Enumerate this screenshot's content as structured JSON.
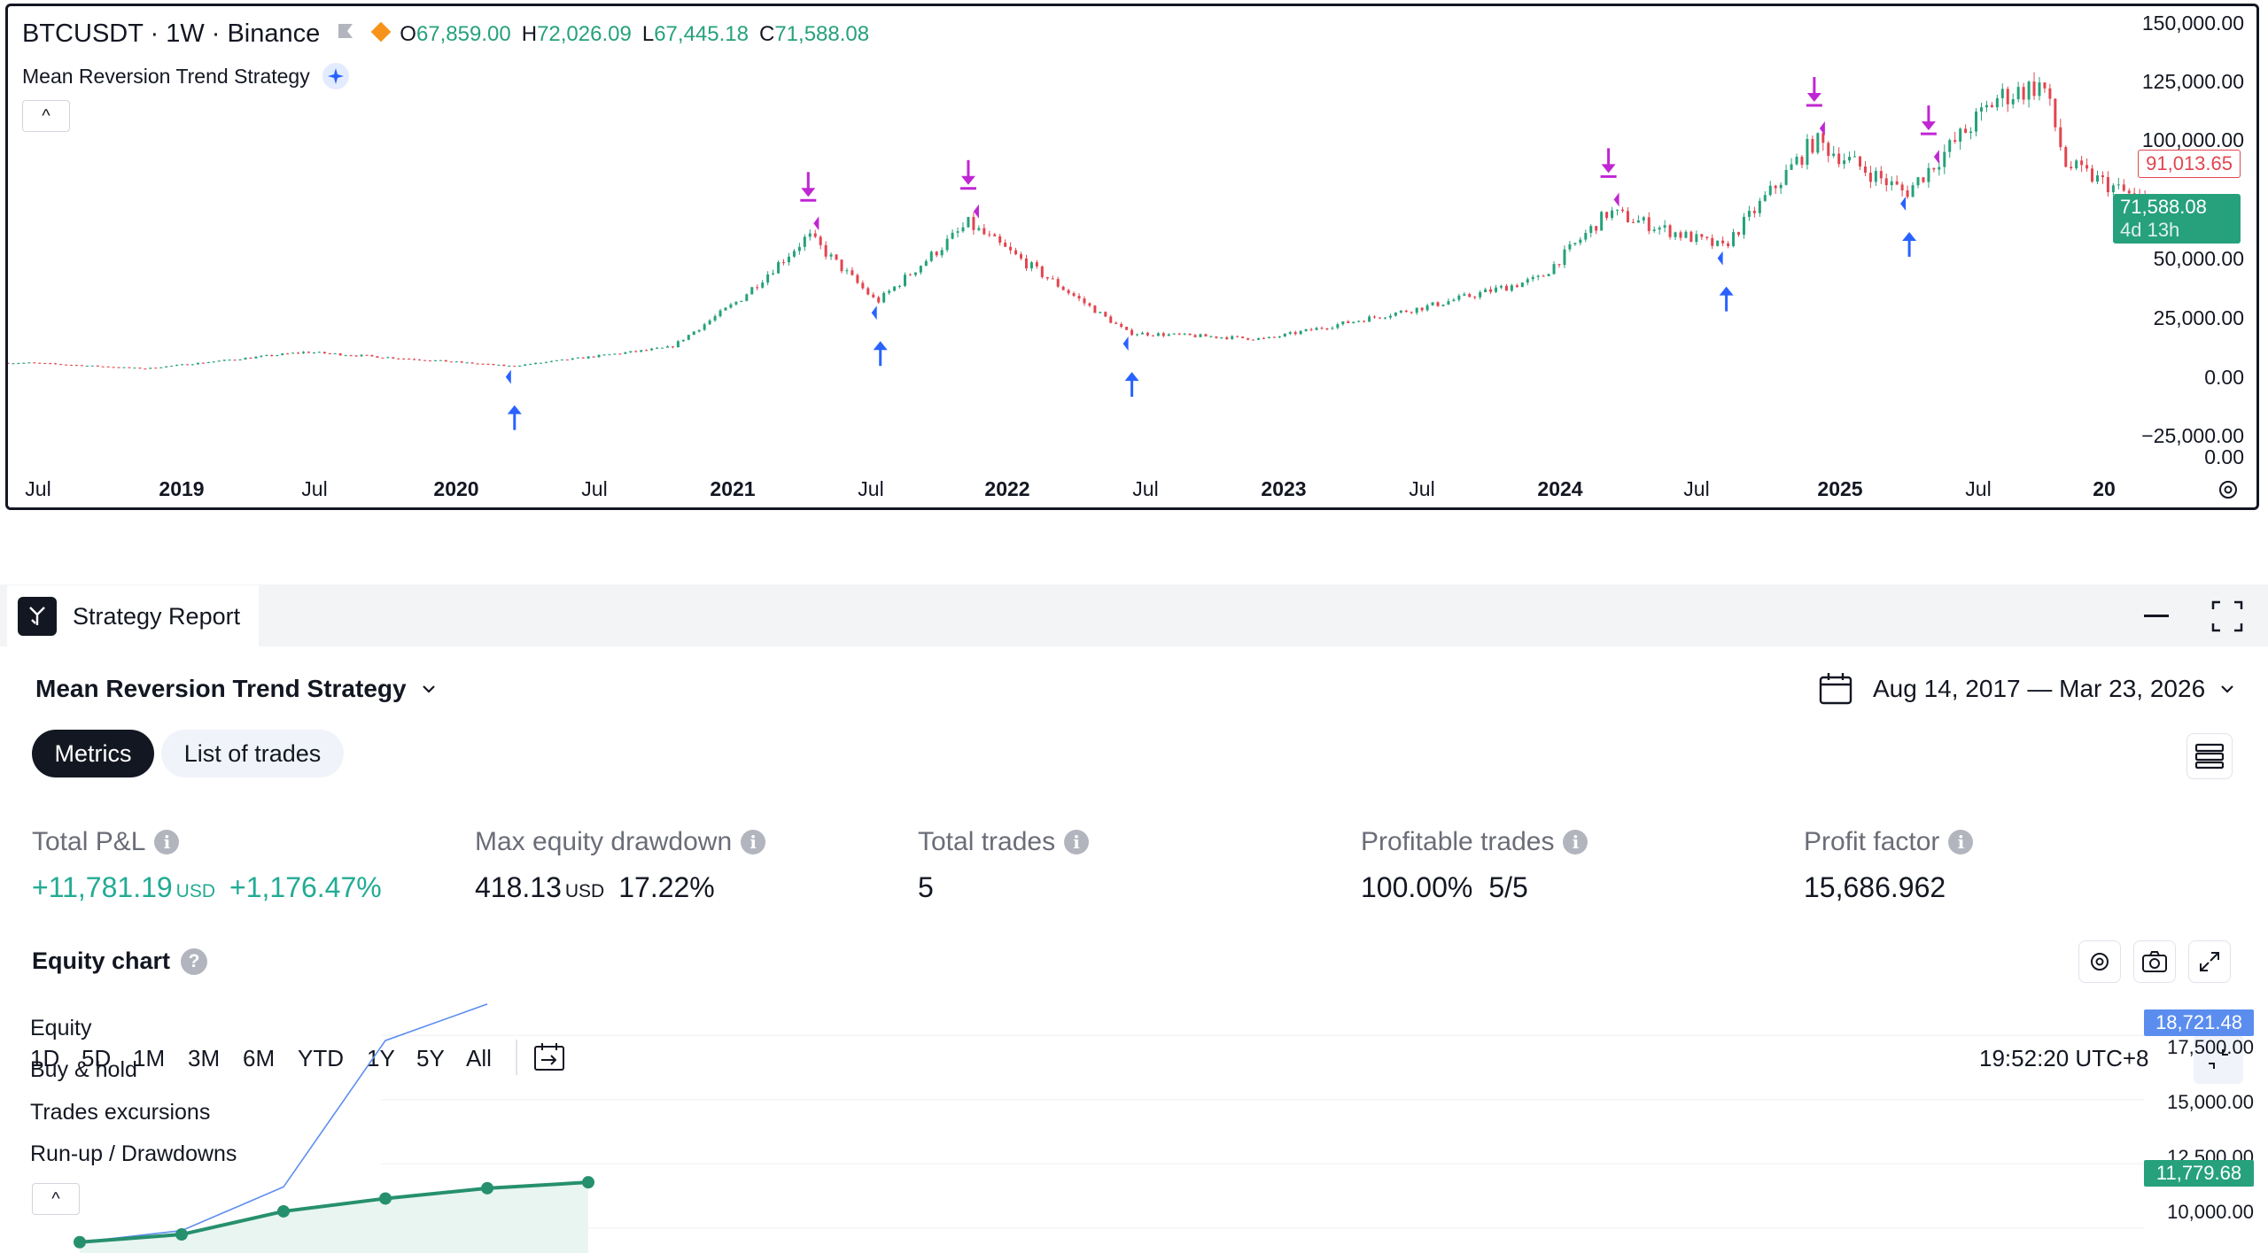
{
  "chart": {
    "symbol": "BTCUSDT · 1W · Binance",
    "ohlc": {
      "o_label": "O",
      "o": "67,859.00",
      "h_label": "H",
      "h": "72,026.09",
      "l_label": "L",
      "l": "67,445.18",
      "c_label": "C",
      "c": "71,588.08"
    },
    "strategy_name": "Mean Reversion Trend Strategy",
    "collapse_label": "^",
    "y_axis": [
      "150,000.00",
      "125,000.00",
      "100,000.00",
      "50,000.00",
      "25,000.00",
      "0.00",
      "−25,000.00",
      "0.00"
    ],
    "x_axis": [
      {
        "label": "Jul",
        "bold": false
      },
      {
        "label": "2019",
        "bold": true
      },
      {
        "label": "Jul",
        "bold": false
      },
      {
        "label": "2020",
        "bold": true
      },
      {
        "label": "Jul",
        "bold": false
      },
      {
        "label": "2021",
        "bold": true
      },
      {
        "label": "Jul",
        "bold": false
      },
      {
        "label": "2022",
        "bold": true
      },
      {
        "label": "Jul",
        "bold": false
      },
      {
        "label": "2023",
        "bold": true
      },
      {
        "label": "Jul",
        "bold": false
      },
      {
        "label": "2024",
        "bold": true
      },
      {
        "label": "Jul",
        "bold": false
      },
      {
        "label": "2025",
        "bold": true
      },
      {
        "label": "Jul",
        "bold": false
      },
      {
        "label": "20",
        "bold": true
      }
    ],
    "price_tag_red": "91,013.65",
    "price_tag_green": "71,588.08",
    "countdown": "4d 13h",
    "colors": {
      "up": "#26a17b",
      "down": "#e2454f",
      "entry": "#2962ff",
      "exit": "#c026d3"
    }
  },
  "toolbar": {
    "ranges": [
      "1D",
      "5D",
      "1M",
      "3M",
      "6M",
      "YTD",
      "1Y",
      "5Y",
      "All"
    ],
    "time": "19:52:20 UTC+8"
  },
  "report": {
    "tab_label": "Strategy Report",
    "strategy_name": "Mean Reversion Trend Strategy",
    "date_range": "Aug 14, 2017 — Mar 23, 2026",
    "tabs": {
      "metrics": "Metrics",
      "trades": "List of trades"
    },
    "metrics": {
      "pnl": {
        "label": "Total P&L",
        "value": "+11,781.19",
        "unit": "USD",
        "pct": "+1,176.47%"
      },
      "drawdown": {
        "label": "Max equity drawdown",
        "value": "418.13",
        "unit": "USD",
        "pct": "17.22%"
      },
      "trades": {
        "label": "Total trades",
        "value": "5"
      },
      "profitable": {
        "label": "Profitable trades",
        "value": "100.00%",
        "ratio": "5/5"
      },
      "factor": {
        "label": "Profit factor",
        "value": "15,686.962"
      }
    },
    "equity": {
      "title": "Equity chart",
      "legend": [
        "Equity",
        "Buy & hold",
        "Trades excursions",
        "Run-up / Drawdowns"
      ],
      "collapse_label": "^",
      "y_axis": [
        "17,500.00",
        "15,000.00",
        "12,500.00",
        "10,000.00"
      ],
      "tag_blue": "18,721.48",
      "tag_green": "11,779.68"
    }
  },
  "chart_data": [
    {
      "type": "candlestick",
      "title": "BTCUSDT · 1W · Binance",
      "x_range": [
        "2018-05",
        "2026-03"
      ],
      "ylim": [
        -25000,
        150000
      ],
      "close_path": [
        {
          "x": "2018-06",
          "y": 6400
        },
        {
          "x": "2018-11",
          "y": 4000
        },
        {
          "x": "2019-06",
          "y": 11000
        },
        {
          "x": "2019-12",
          "y": 7200
        },
        {
          "x": "2020-03",
          "y": 5000
        },
        {
          "x": "2020-10",
          "y": 13000
        },
        {
          "x": "2021-01",
          "y": 33000
        },
        {
          "x": "2021-04",
          "y": 60000
        },
        {
          "x": "2021-07",
          "y": 32000
        },
        {
          "x": "2021-11",
          "y": 65000
        },
        {
          "x": "2022-06",
          "y": 19000
        },
        {
          "x": "2022-12",
          "y": 16500
        },
        {
          "x": "2023-07",
          "y": 30000
        },
        {
          "x": "2023-12",
          "y": 42000
        },
        {
          "x": "2024-03",
          "y": 70000
        },
        {
          "x": "2024-08",
          "y": 55000
        },
        {
          "x": "2024-12",
          "y": 100000
        },
        {
          "x": "2025-04",
          "y": 78000
        },
        {
          "x": "2025-08",
          "y": 118000
        },
        {
          "x": "2025-10",
          "y": 124000
        },
        {
          "x": "2025-11",
          "y": 90000
        },
        {
          "x": "2026-03",
          "y": 71588
        }
      ],
      "entries": [
        "2020-03",
        "2021-07",
        "2022-06",
        "2024-08",
        "2025-04"
      ],
      "exits": [
        "2021-04",
        "2021-11",
        "2024-03",
        "2024-12",
        "2025-05"
      ]
    },
    {
      "type": "line",
      "title": "Equity chart",
      "series": [
        {
          "name": "Equity",
          "values": [
            9450,
            9750,
            10650,
            11150,
            11550,
            11780
          ]
        },
        {
          "name": "Buy & hold",
          "values": [
            9450,
            9900,
            11600,
            17300,
            18721
          ]
        }
      ],
      "ylim": [
        9200,
        19200
      ]
    }
  ]
}
